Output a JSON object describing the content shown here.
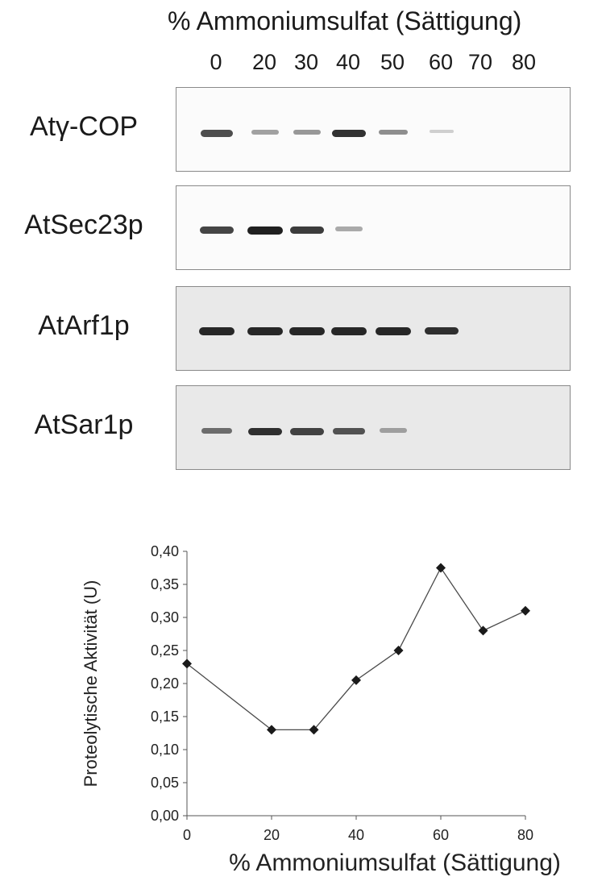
{
  "blot": {
    "title": "% Ammoniumsulfat (Sättigung)",
    "lanes": [
      "0",
      "20",
      "30",
      "40",
      "50",
      "60",
      "70",
      "80"
    ],
    "rows": [
      {
        "label": "Atγ-COP",
        "bands": [
          0.75,
          0.3,
          0.35,
          0.9,
          0.4,
          0.05,
          0,
          0
        ]
      },
      {
        "label": "AtSec23p",
        "bands": [
          0.8,
          1.0,
          0.85,
          0.25,
          0,
          0,
          0,
          0
        ]
      },
      {
        "label": "AtArf1p",
        "bands": [
          0.95,
          0.95,
          0.95,
          0.95,
          0.95,
          0.9,
          0,
          0
        ]
      },
      {
        "label": "AtSar1p",
        "bands": [
          0.55,
          0.9,
          0.8,
          0.7,
          0.25,
          0,
          0,
          0
        ]
      }
    ]
  },
  "chart_data": {
    "type": "line",
    "x": [
      0,
      20,
      30,
      40,
      50,
      60,
      70,
      80
    ],
    "y": [
      0.23,
      0.13,
      0.13,
      0.205,
      0.25,
      0.375,
      0.28,
      0.31
    ],
    "xlabel": "% Ammoniumsulfat (Sättigung)",
    "ylabel": "Proteolytische Aktivität (U)",
    "xlim": [
      0,
      80
    ],
    "ylim": [
      0,
      0.4
    ],
    "xticks": [
      "0",
      "20",
      "40",
      "60",
      "80"
    ],
    "yticks": [
      "0,00",
      "0,05",
      "0,10",
      "0,15",
      "0,20",
      "0,25",
      "0,30",
      "0,35",
      "0,40"
    ],
    "marker": "diamond",
    "grid": false,
    "colors": {
      "line": "#4a4a4a",
      "marker": "#1a1a1a"
    }
  }
}
